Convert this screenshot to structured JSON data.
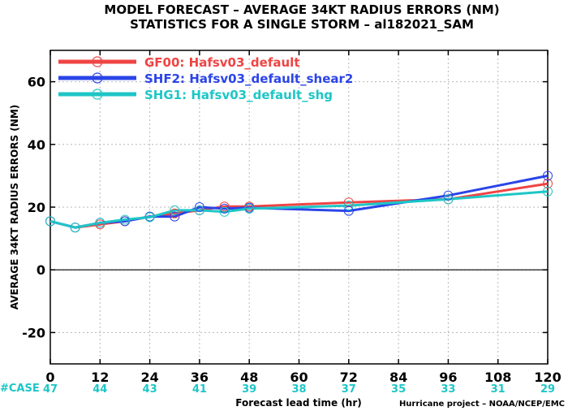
{
  "chart_data": {
    "type": "line",
    "title": "MODEL FORECAST – AVERAGE 34KT RADIUS ERRORS (NM)",
    "subtitle": "STATISTICS FOR A SINGLE STORM – al182021_SAM",
    "xlabel": "Forecast lead time (hr)",
    "ylabel": "AVERAGE 34KT RADIUS ERRORS (NM)",
    "xlim": [
      0,
      120
    ],
    "ylim": [
      -30,
      70
    ],
    "x_ticks": [
      0,
      12,
      24,
      36,
      48,
      60,
      72,
      84,
      96,
      108,
      120
    ],
    "y_ticks": [
      -20,
      0,
      20,
      40,
      60
    ],
    "grid": true,
    "legend_position": "top-left",
    "case_label": "#CASE",
    "case_counts": [
      47,
      44,
      43,
      41,
      39,
      38,
      37,
      35,
      33,
      31,
      29
    ],
    "case_color": "#1ec6c6",
    "credit": "Hurricane project – NOAA/NCEP/EMC",
    "series": [
      {
        "name": "GF00: Hafsv03_default",
        "color": "#ef4444",
        "x": [
          0,
          6,
          12,
          18,
          24,
          30,
          36,
          42,
          48,
          72,
          96,
          120
        ],
        "y": [
          15.5,
          13.5,
          14.5,
          15.5,
          17,
          18,
          19,
          20.2,
          20.2,
          21.5,
          22.5,
          27.5
        ]
      },
      {
        "name": "SHF2: Hafsv03_default_shear2",
        "color": "#2b44e8",
        "x": [
          0,
          6,
          12,
          18,
          24,
          30,
          36,
          42,
          48,
          72,
          96,
          120
        ],
        "y": [
          15.5,
          13.5,
          15,
          15.5,
          17,
          17,
          20,
          19.5,
          19.8,
          18.8,
          23.7,
          30
        ]
      },
      {
        "name": "SHG1: Hafsv03_default_shg",
        "color": "#1ec6c6",
        "x": [
          0,
          6,
          12,
          18,
          24,
          30,
          36,
          42,
          48,
          72,
          96,
          120
        ],
        "y": [
          15.5,
          13.5,
          15,
          16,
          16.8,
          19,
          19,
          18.5,
          19.5,
          20.5,
          22.5,
          25
        ]
      }
    ]
  }
}
